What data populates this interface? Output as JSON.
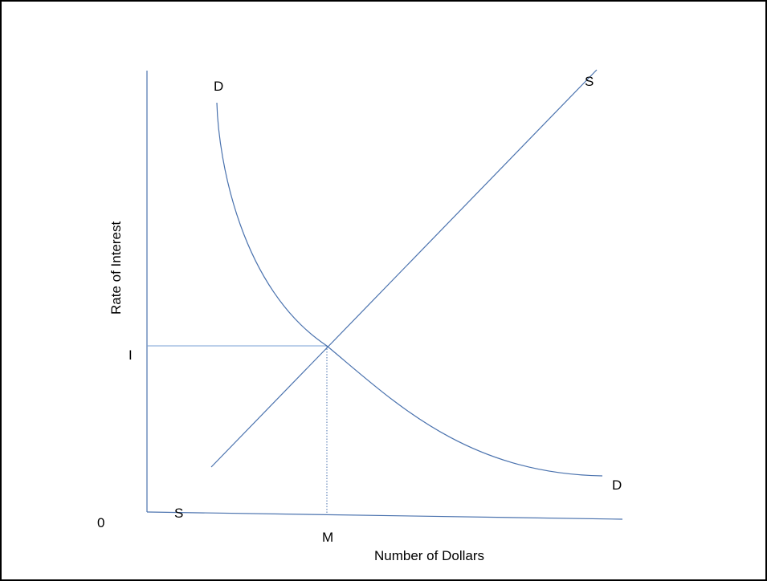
{
  "diagram": {
    "axis_labels": {
      "y": "Rate of Interest",
      "x": "Number of Dollars",
      "origin": "0"
    },
    "curve_labels": {
      "demand_top": "D",
      "demand_bottom": "D",
      "supply_top": "S",
      "supply_bottom": "S"
    },
    "equilibrium_labels": {
      "interest": "I",
      "quantity": "M"
    },
    "colors": {
      "curve": "#4a72ae",
      "guide": "#7aa0d4",
      "axis": "#4a72ae",
      "border": "#000000"
    }
  }
}
